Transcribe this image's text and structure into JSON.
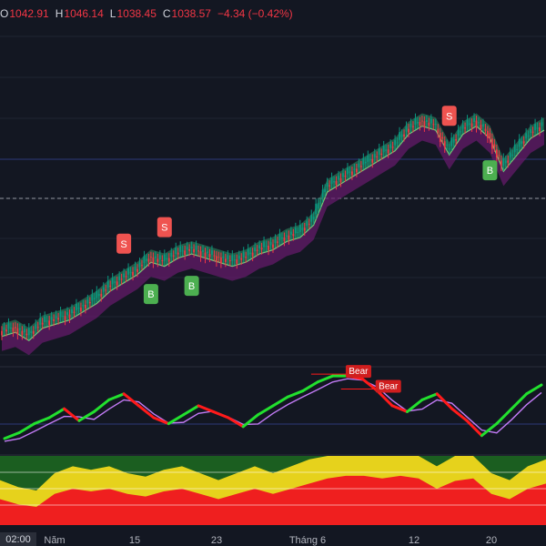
{
  "ohlc": {
    "o_label": "O",
    "o_value": "1042.91",
    "h_label": "H",
    "h_value": "1046.14",
    "l_label": "L",
    "l_value": "1038.45",
    "c_label": "C",
    "c_value": "1038.57",
    "change": "−4.34 (−0.42%)"
  },
  "colors": {
    "background": "#131722",
    "up": "#089981",
    "down": "#f23645",
    "buy_badge": "#4caf50",
    "sell_badge": "#ef5350",
    "ribbon_green": "#2e7d5b",
    "ribbon_purple": "#6a1b6e",
    "osc_up": "#22e02e",
    "osc_down": "#ff1a1a",
    "osc_signal": "#c27bf5",
    "trend_green": "#1b5e20",
    "trend_yellow": "#e6d21c",
    "trend_red": "#ef1f1f"
  },
  "time_axis": {
    "current_label": "02:00",
    "labels": [
      "Năm",
      "15",
      "23",
      "Tháng 6",
      "12",
      "20"
    ]
  },
  "chart_data": [
    {
      "type": "line",
      "panel": "price",
      "series": [
        {
          "values": [
            1003,
            1004,
            1002,
            1005,
            1006,
            1007,
            1009,
            1011,
            1014,
            1016,
            1018,
            1021,
            1020,
            1022,
            1023,
            1022,
            1021,
            1020,
            1021,
            1023,
            1024,
            1026,
            1027,
            1030,
            1038,
            1040,
            1042,
            1044,
            1046,
            1048,
            1052,
            1054,
            1053,
            1047,
            1052,
            1054,
            1051,
            1043,
            1047,
            1051,
            1053
          ]
        }
      ],
      "signals": [
        {
          "label": "S",
          "type": "sell",
          "index": 9
        },
        {
          "label": "S",
          "type": "sell",
          "index": 12
        },
        {
          "label": "B",
          "type": "buy",
          "index": 11
        },
        {
          "label": "B",
          "type": "buy",
          "index": 14
        },
        {
          "label": "S",
          "type": "sell",
          "index": 33
        },
        {
          "label": "B",
          "type": "buy",
          "index": 36
        }
      ]
    },
    {
      "type": "line",
      "panel": "oscillator",
      "series": [
        {
          "values": [
            8,
            12,
            18,
            22,
            28,
            20,
            26,
            34,
            38,
            30,
            22,
            18,
            24,
            30,
            26,
            22,
            16,
            24,
            30,
            36,
            40,
            46,
            50,
            50,
            48,
            40,
            30,
            26,
            34,
            38,
            28,
            20,
            10,
            18,
            28,
            38,
            44
          ]
        }
      ],
      "annotations": [
        {
          "label": "Bear",
          "index": 23
        },
        {
          "label": "Bear",
          "index": 25
        }
      ]
    },
    {
      "type": "area",
      "panel": "trend",
      "series": [
        {
          "values": [
            0.5,
            0.4,
            0.35,
            0.6,
            0.7,
            0.65,
            0.7,
            0.6,
            0.55,
            0.65,
            0.7,
            0.6,
            0.5,
            0.6,
            0.7,
            0.6,
            0.7,
            0.8,
            0.9,
            0.95,
            0.95,
            0.9,
            0.95,
            0.9,
            0.7,
            0.85,
            0.9,
            0.6,
            0.5,
            0.7,
            0.8
          ]
        }
      ]
    }
  ]
}
